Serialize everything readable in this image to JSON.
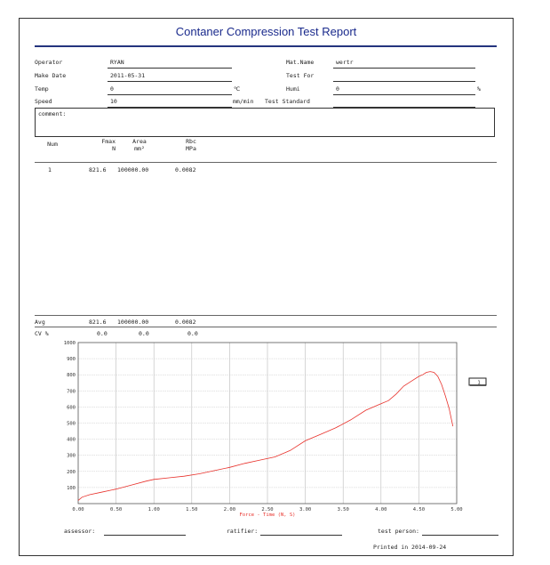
{
  "report": {
    "title": "Contaner Compression Test Report",
    "fields_left": [
      {
        "label": "Operator",
        "value": "RYAN",
        "unit": ""
      },
      {
        "label": "Make Date",
        "value": "2011-05-31",
        "unit": ""
      },
      {
        "label": "Temp",
        "value": "0",
        "unit": "℃"
      },
      {
        "label": "Speed",
        "value": "10",
        "unit": "mm/min"
      }
    ],
    "fields_right": [
      {
        "label": "Mat.Name",
        "value": "wertr",
        "unit": ""
      },
      {
        "label": "Test For",
        "value": "",
        "unit": ""
      },
      {
        "label": "Humi",
        "value": "0",
        "unit": "%"
      },
      {
        "label": "Test Standard",
        "value": "",
        "unit": ""
      }
    ],
    "comment_label": "comment:"
  },
  "table": {
    "headers": [
      {
        "line1": "Num",
        "line2": ""
      },
      {
        "line1": "Fmax",
        "line2": "N"
      },
      {
        "line1": "Area",
        "line2": "mm²"
      },
      {
        "line1": "Rbc",
        "line2": "MPa"
      }
    ],
    "rows": [
      [
        "1",
        "821.6",
        "100000.00",
        "0.0082"
      ]
    ],
    "summary": [
      [
        "Avg",
        "821.6",
        "100000.00",
        "0.0082"
      ],
      [
        "CV %",
        "0.0",
        "0.0",
        "0.0"
      ]
    ]
  },
  "chart_data": {
    "type": "line",
    "xlabel": "Force - Time  (N, S)",
    "ylabel": "",
    "xlim": [
      0,
      5
    ],
    "ylim": [
      0,
      1000
    ],
    "x_ticks": [
      "0.00",
      "0.50",
      "1.00",
      "1.50",
      "2.00",
      "2.50",
      "3.00",
      "3.50",
      "4.00",
      "4.50",
      "5.00"
    ],
    "y_ticks": [
      "100",
      "200",
      "300",
      "400",
      "500",
      "600",
      "700",
      "800",
      "900",
      "1000"
    ],
    "grid": true,
    "legend_label": "1",
    "line_color": "#e8302a",
    "series": [
      {
        "name": "1",
        "x": [
          0.0,
          0.05,
          0.15,
          0.3,
          0.5,
          0.7,
          0.9,
          1.0,
          1.2,
          1.4,
          1.6,
          1.8,
          2.0,
          2.2,
          2.4,
          2.6,
          2.8,
          3.0,
          3.2,
          3.4,
          3.6,
          3.8,
          4.0,
          4.1,
          4.2,
          4.3,
          4.4,
          4.5,
          4.55,
          4.6,
          4.65,
          4.7,
          4.75,
          4.8,
          4.85,
          4.9,
          4.95
        ],
        "y": [
          20,
          40,
          55,
          70,
          90,
          115,
          140,
          150,
          160,
          170,
          185,
          205,
          225,
          250,
          270,
          290,
          330,
          390,
          430,
          470,
          520,
          580,
          620,
          640,
          680,
          730,
          760,
          790,
          800,
          815,
          820,
          815,
          790,
          740,
          670,
          590,
          480
        ]
      }
    ]
  },
  "signatures": {
    "assessor": "assessor:",
    "ratifier": "ratifier:",
    "test_person": "test person:"
  },
  "footer": {
    "printed": "Printed in 2014-09-24"
  }
}
